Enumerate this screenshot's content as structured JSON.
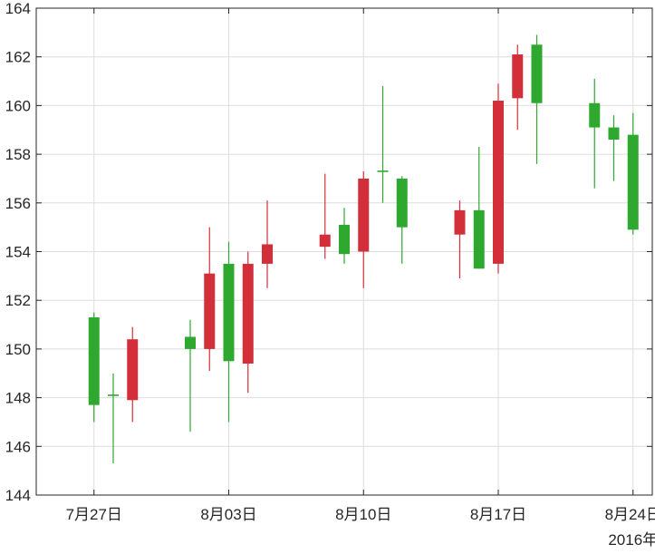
{
  "chart_data": {
    "type": "candlestick",
    "xlabel_year": "2016年",
    "x_ticks": [
      {
        "date": "2016-07-27",
        "label": "7月27日"
      },
      {
        "date": "2016-08-03",
        "label": "8月03日"
      },
      {
        "date": "2016-08-10",
        "label": "8月10日"
      },
      {
        "date": "2016-08-17",
        "label": "8月17日"
      },
      {
        "date": "2016-08-24",
        "label": "8月24日"
      }
    ],
    "xlim": [
      "2016-07-24",
      "2016-08-25"
    ],
    "ylim": [
      144,
      164
    ],
    "y_ticks": [
      144,
      146,
      148,
      150,
      152,
      154,
      156,
      158,
      160,
      162,
      164
    ],
    "grid": true,
    "colors": {
      "up": "#2ea82e",
      "down": "#d32f3a"
    },
    "candles": [
      {
        "date": "2016-07-27",
        "open": 147.7,
        "high": 151.5,
        "low": 147.0,
        "close": 151.3
      },
      {
        "date": "2016-07-28",
        "open": 148.1,
        "high": 149.0,
        "low": 145.3,
        "close": 148.1
      },
      {
        "date": "2016-07-29",
        "open": 150.4,
        "high": 150.9,
        "low": 147.0,
        "close": 147.9
      },
      {
        "date": "2016-08-01",
        "open": 150.0,
        "high": 151.2,
        "low": 146.6,
        "close": 150.5
      },
      {
        "date": "2016-08-02",
        "open": 153.1,
        "high": 155.0,
        "low": 149.1,
        "close": 150.0
      },
      {
        "date": "2016-08-03",
        "open": 149.5,
        "high": 154.4,
        "low": 147.0,
        "close": 153.5
      },
      {
        "date": "2016-08-04",
        "open": 153.5,
        "high": 154.0,
        "low": 148.2,
        "close": 149.4
      },
      {
        "date": "2016-08-05",
        "open": 154.3,
        "high": 156.1,
        "low": 152.5,
        "close": 153.5
      },
      {
        "date": "2016-08-08",
        "open": 154.7,
        "high": 157.2,
        "low": 153.7,
        "close": 154.2
      },
      {
        "date": "2016-08-09",
        "open": 153.9,
        "high": 155.8,
        "low": 153.5,
        "close": 155.1
      },
      {
        "date": "2016-08-10",
        "open": 157.0,
        "high": 157.3,
        "low": 152.5,
        "close": 154.0
      },
      {
        "date": "2016-08-11",
        "open": 157.3,
        "high": 160.8,
        "low": 156.0,
        "close": 157.3
      },
      {
        "date": "2016-08-12",
        "open": 155.0,
        "high": 157.1,
        "low": 153.5,
        "close": 157.0
      },
      {
        "date": "2016-08-15",
        "open": 155.7,
        "high": 156.1,
        "low": 152.9,
        "close": 154.7
      },
      {
        "date": "2016-08-16",
        "open": 153.3,
        "high": 158.3,
        "low": 153.3,
        "close": 155.7
      },
      {
        "date": "2016-08-17",
        "open": 160.2,
        "high": 160.9,
        "low": 153.1,
        "close": 153.5
      },
      {
        "date": "2016-08-18",
        "open": 162.1,
        "high": 162.5,
        "low": 159.0,
        "close": 160.3
      },
      {
        "date": "2016-08-19",
        "open": 160.1,
        "high": 162.9,
        "low": 157.6,
        "close": 162.5
      },
      {
        "date": "2016-08-22",
        "open": 159.1,
        "high": 161.1,
        "low": 156.6,
        "close": 160.1
      },
      {
        "date": "2016-08-23",
        "open": 158.6,
        "high": 159.6,
        "low": 156.9,
        "close": 159.1
      },
      {
        "date": "2016-08-24",
        "open": 154.9,
        "high": 159.7,
        "low": 154.7,
        "close": 158.8
      }
    ]
  }
}
